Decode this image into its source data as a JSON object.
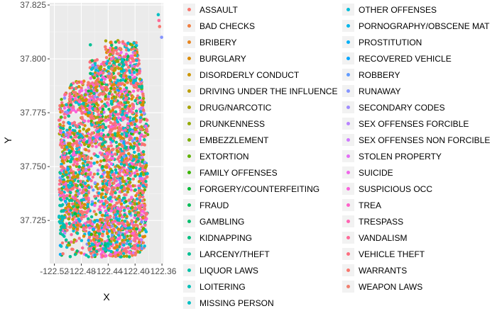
{
  "chart_data": {
    "type": "scatter",
    "xlabel": "X",
    "ylabel": "Y",
    "x_ticks": [
      "-122.52",
      "-122.48",
      "-122.44",
      "-122.40",
      "-122.36"
    ],
    "x_tick_values": [
      -122.52,
      -122.48,
      -122.44,
      -122.4,
      -122.36
    ],
    "y_ticks": [
      "37.725",
      "37.750",
      "37.775",
      "37.800",
      "37.825"
    ],
    "y_tick_values": [
      37.725,
      37.75,
      37.775,
      37.8,
      37.825
    ],
    "xlim": [
      -122.527,
      -122.358
    ],
    "ylim": [
      37.705,
      37.826
    ],
    "grid": true,
    "legend_position": "right",
    "categories": [
      {
        "name": "ASSAULT",
        "color": "#F8766D"
      },
      {
        "name": "BAD CHECKS",
        "color": "#F17F41"
      },
      {
        "name": "BRIBERY",
        "color": "#E7851E"
      },
      {
        "name": "BURGLARY",
        "color": "#DC8B00"
      },
      {
        "name": "DISORDERLY CONDUCT",
        "color": "#CD9600"
      },
      {
        "name": "DRIVING UNDER THE INFLUENCE",
        "color": "#BC9D00"
      },
      {
        "name": "DRUG/NARCOTIC",
        "color": "#A9A400"
      },
      {
        "name": "DRUNKENNESS",
        "color": "#93AA00"
      },
      {
        "name": "EMBEZZLEMENT",
        "color": "#7CAE00"
      },
      {
        "name": "EXTORTION",
        "color": "#5FB200"
      },
      {
        "name": "FAMILY OFFENSES",
        "color": "#3BB600"
      },
      {
        "name": "FORGERY/COUNTERFEITING",
        "color": "#00BA38"
      },
      {
        "name": "FRAUD",
        "color": "#00BC56"
      },
      {
        "name": "GAMBLING",
        "color": "#00BE6C"
      },
      {
        "name": "KIDNAPPING",
        "color": "#00C080"
      },
      {
        "name": "LARCENY/THEFT",
        "color": "#00C094"
      },
      {
        "name": "LIQUOR LAWS",
        "color": "#00C0A7"
      },
      {
        "name": "LOITERING",
        "color": "#00C0B8"
      },
      {
        "name": "MISSING PERSON",
        "color": "#00BFC4"
      },
      {
        "name": "OTHER OFFENSES",
        "color": "#00BCD8"
      },
      {
        "name": "PORNOGRAPHY/OBSCENE MAT",
        "color": "#00B6EB"
      },
      {
        "name": "PROSTITUTION",
        "color": "#00AFF8"
      },
      {
        "name": "RECOVERED VEHICLE",
        "color": "#00A6FF"
      },
      {
        "name": "ROBBERY",
        "color": "#619CFF"
      },
      {
        "name": "RUNAWAY",
        "color": "#8494FF"
      },
      {
        "name": "SECONDARY CODES",
        "color": "#9F8CFF"
      },
      {
        "name": "SEX OFFENSES FORCIBLE",
        "color": "#B983FF"
      },
      {
        "name": "SEX OFFENSES NON FORCIBLE",
        "color": "#CF78FF"
      },
      {
        "name": "STOLEN PROPERTY",
        "color": "#E36EF6"
      },
      {
        "name": "SUICIDE",
        "color": "#F066EA"
      },
      {
        "name": "SUSPICIOUS OCC",
        "color": "#FA62DB"
      },
      {
        "name": "TREA",
        "color": "#FF61C9"
      },
      {
        "name": "TRESPASS",
        "color": "#FF64B2"
      },
      {
        "name": "VANDALISM",
        "color": "#FF6A98"
      },
      {
        "name": "VEHICLE THEFT",
        "color": "#FD6E7F"
      },
      {
        "name": "WARRANTS",
        "color": "#F8766D"
      },
      {
        "name": "WEAPON LAWS",
        "color": "#F17F6E"
      }
    ],
    "outlier_points": [
      {
        "x": -122.3655,
        "y": 37.8205,
        "category": "MISSING PERSON"
      },
      {
        "x": -122.3645,
        "y": 37.8178,
        "category": "VANDALISM"
      },
      {
        "x": -122.3635,
        "y": 37.815,
        "category": "ASSAULT"
      },
      {
        "x": -122.3605,
        "y": 37.81,
        "category": "RUNAWAY"
      },
      {
        "x": -122.4665,
        "y": 37.8065,
        "category": "LARCENY/THEFT"
      }
    ]
  }
}
